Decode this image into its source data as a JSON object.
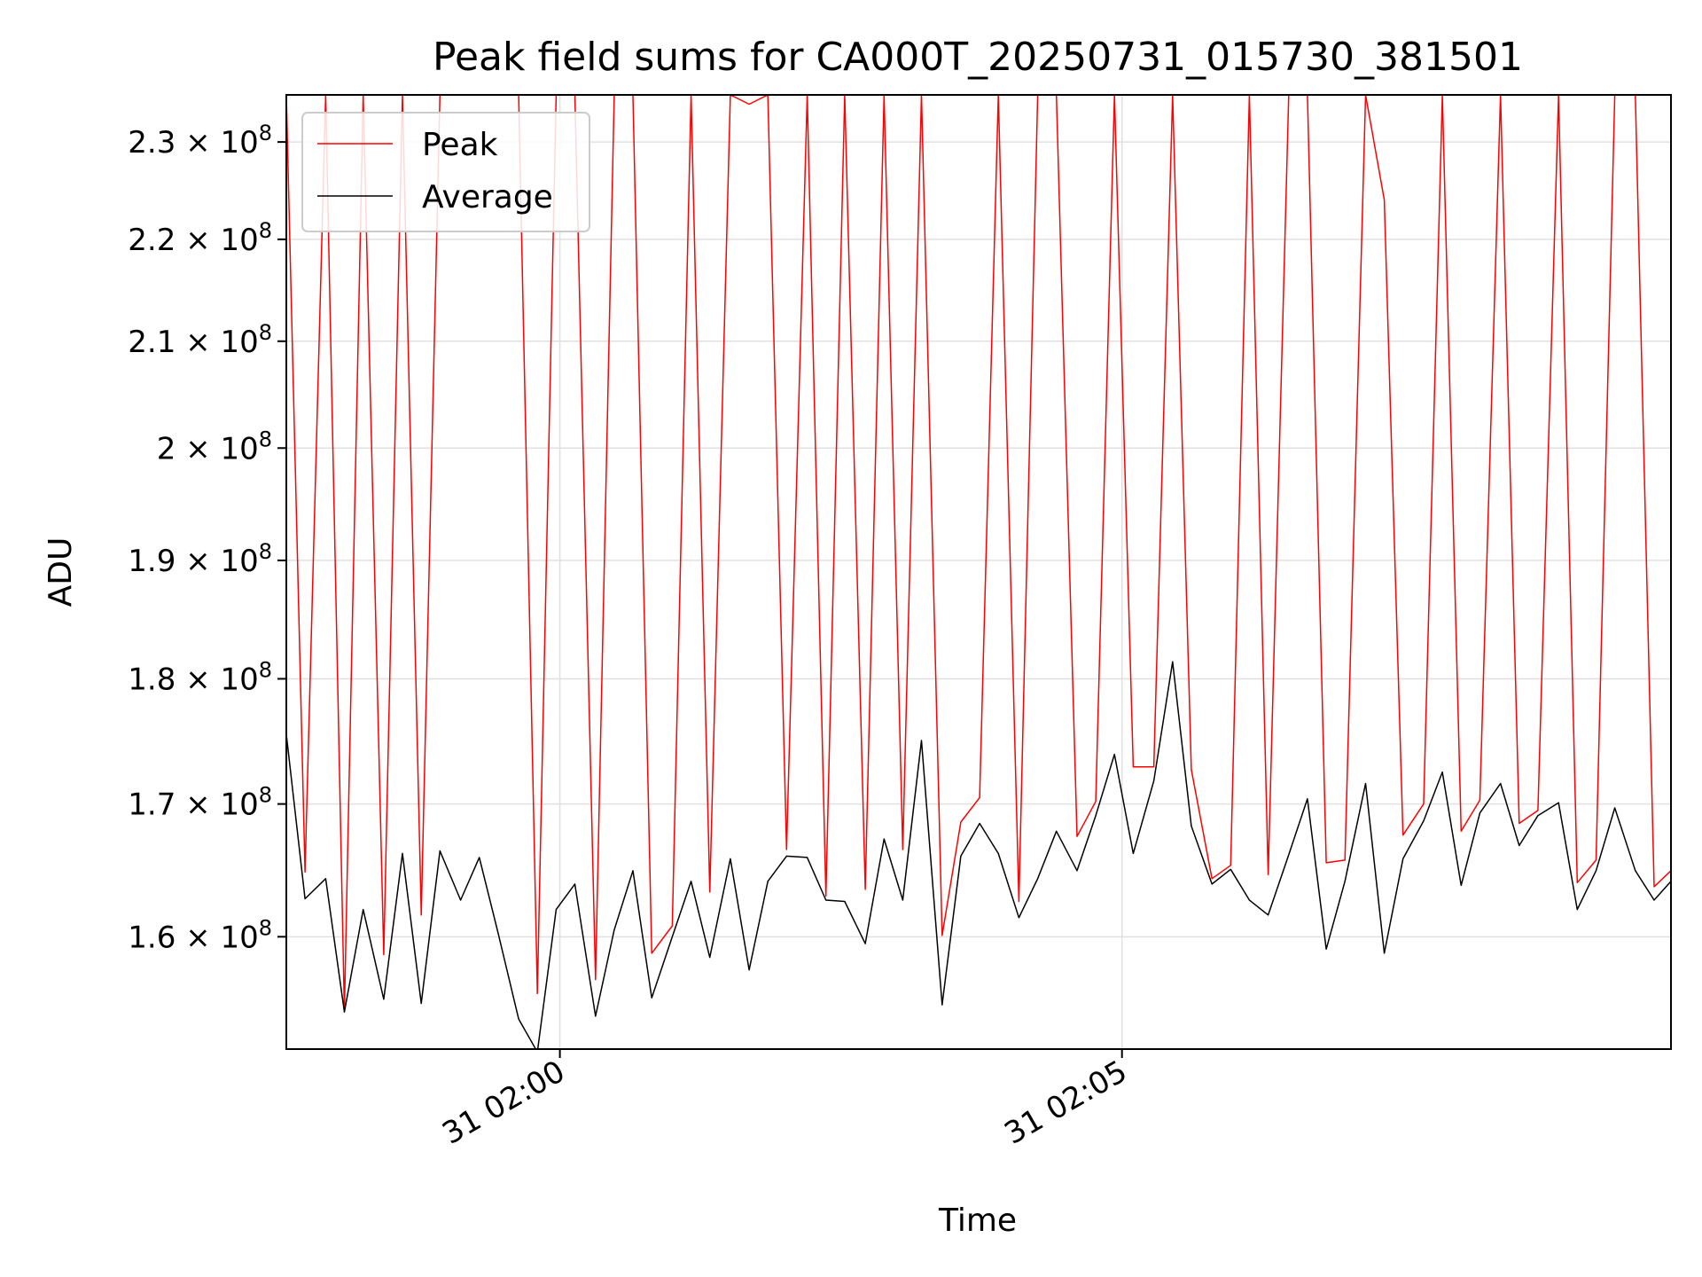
{
  "chart_data": {
    "type": "line",
    "title": "Peak field sums for CA000T_20250731_015730_381501",
    "xlabel": "Time",
    "ylabel": "ADU",
    "y_scale": "log",
    "ylim": [
      152000000,
      235000000
    ],
    "xlim": [
      "2025-07-31T01:57:34",
      "2025-07-31T02:09:53"
    ],
    "y_ticks": [
      {
        "value": 160000000,
        "label_mantissa": "1.6",
        "label_base": "10",
        "label_exp": "8"
      },
      {
        "value": 170000000,
        "label_mantissa": "1.7",
        "label_base": "10",
        "label_exp": "8"
      },
      {
        "value": 180000000,
        "label_mantissa": "1.8",
        "label_base": "10",
        "label_exp": "8"
      },
      {
        "value": 190000000,
        "label_mantissa": "1.9",
        "label_base": "10",
        "label_exp": "8"
      },
      {
        "value": 200000000,
        "label_mantissa": "2",
        "label_base": "10",
        "label_exp": "8"
      },
      {
        "value": 210000000,
        "label_mantissa": "2.1",
        "label_base": "10",
        "label_exp": "8"
      },
      {
        "value": 220000000,
        "label_mantissa": "2.2",
        "label_base": "10",
        "label_exp": "8"
      },
      {
        "value": 230000000,
        "label_mantissa": "2.3",
        "label_base": "10",
        "label_exp": "8"
      }
    ],
    "x_ticks": [
      {
        "value": "2025-07-31T02:00:00",
        "label": "31 02:00"
      },
      {
        "value": "2025-07-31T02:05:00",
        "label": "31 02:05"
      }
    ],
    "grid": true,
    "legend_position": "top-left",
    "x": [
      "2025-07-31T01:57:34",
      "2025-07-31T01:57:44",
      "2025-07-31T01:57:55",
      "2025-07-31T01:58:05",
      "2025-07-31T01:58:15",
      "2025-07-31T01:58:26",
      "2025-07-31T01:58:36",
      "2025-07-31T01:58:46",
      "2025-07-31T01:58:56",
      "2025-07-31T01:59:07",
      "2025-07-31T01:59:17",
      "2025-07-31T01:59:27",
      "2025-07-31T01:59:38",
      "2025-07-31T01:59:48",
      "2025-07-31T01:59:58",
      "2025-07-31T02:00:08",
      "2025-07-31T02:00:19",
      "2025-07-31T02:00:29",
      "2025-07-31T02:00:39",
      "2025-07-31T02:00:49",
      "2025-07-31T02:01:00",
      "2025-07-31T02:01:10",
      "2025-07-31T02:01:20",
      "2025-07-31T02:01:31",
      "2025-07-31T02:01:41",
      "2025-07-31T02:01:51",
      "2025-07-31T02:02:01",
      "2025-07-31T02:02:12",
      "2025-07-31T02:02:22",
      "2025-07-31T02:02:32",
      "2025-07-31T02:02:43",
      "2025-07-31T02:02:53",
      "2025-07-31T02:03:03",
      "2025-07-31T02:03:13",
      "2025-07-31T02:03:24",
      "2025-07-31T02:03:34",
      "2025-07-31T02:03:44",
      "2025-07-31T02:03:54",
      "2025-07-31T02:04:05",
      "2025-07-31T02:04:15",
      "2025-07-31T02:04:25",
      "2025-07-31T02:04:36",
      "2025-07-31T02:04:46",
      "2025-07-31T02:04:56",
      "2025-07-31T02:05:06",
      "2025-07-31T02:05:17",
      "2025-07-31T02:05:27",
      "2025-07-31T02:05:37",
      "2025-07-31T02:05:48",
      "2025-07-31T02:05:58",
      "2025-07-31T02:06:08",
      "2025-07-31T02:06:18",
      "2025-07-31T02:06:29",
      "2025-07-31T02:06:39",
      "2025-07-31T02:06:49",
      "2025-07-31T02:06:59",
      "2025-07-31T02:07:10",
      "2025-07-31T02:07:20",
      "2025-07-31T02:07:30",
      "2025-07-31T02:07:41",
      "2025-07-31T02:07:51",
      "2025-07-31T02:08:01",
      "2025-07-31T02:08:11",
      "2025-07-31T02:08:22",
      "2025-07-31T02:08:32",
      "2025-07-31T02:08:42",
      "2025-07-31T02:08:53",
      "2025-07-31T02:09:03",
      "2025-07-31T02:09:13",
      "2025-07-31T02:09:23",
      "2025-07-31T02:09:34",
      "2025-07-31T02:09:44",
      "2025-07-31T02:09:53"
    ],
    "series": [
      {
        "name": "Peak",
        "color": "#ff0000",
        "values": [
          235000000,
          164800000,
          235000000,
          154600000,
          235000000,
          158700000,
          235000000,
          161600000,
          235000000,
          235000000,
          235000000,
          235000000,
          235000000,
          155900000,
          235000000,
          235000000,
          156900000,
          235000000,
          235000000,
          158800000,
          160800000,
          235000000,
          163300000,
          235000000,
          234000000,
          235000000,
          166500000,
          235000000,
          163000000,
          235000000,
          163500000,
          235000000,
          166500000,
          235000000,
          160100000,
          168600000,
          170500000,
          235000000,
          162600000,
          235000000,
          235000000,
          167500000,
          170200000,
          235000000,
          172900000,
          172900000,
          235000000,
          172700000,
          164300000,
          165300000,
          235000000,
          164600000,
          235000000,
          235000000,
          165500000,
          165700000,
          235000000,
          224000000,
          167600000,
          170000000,
          235000000,
          167900000,
          170300000,
          235000000,
          168500000,
          169500000,
          235000000,
          164000000,
          165700000,
          235000000,
          235000000,
          163700000,
          164900000
        ]
      },
      {
        "name": "Average",
        "color": "#000000",
        "values": [
          175500000,
          162800000,
          164300000,
          154600000,
          162000000,
          155500000,
          166200000,
          155200000,
          166400000,
          162700000,
          165900000,
          160300000,
          154100000,
          151800000,
          162000000,
          163900000,
          154300000,
          160500000,
          164900000,
          155600000,
          160000000,
          164100000,
          158500000,
          165800000,
          157600000,
          164100000,
          166000000,
          165900000,
          162700000,
          162600000,
          159500000,
          167300000,
          162700000,
          175000000,
          155100000,
          166000000,
          168500000,
          166200000,
          161400000,
          164300000,
          167900000,
          164900000,
          169100000,
          173900000,
          166200000,
          171800000,
          181400000,
          168300000,
          163900000,
          165000000,
          162700000,
          161600000,
          166100000,
          170400000,
          159100000,
          164100000,
          171600000,
          158800000,
          165800000,
          168700000,
          172500000,
          163800000,
          169300000,
          171600000,
          166800000,
          169100000,
          170100000,
          162000000,
          164900000,
          169700000,
          164900000,
          162700000,
          164100000
        ]
      }
    ]
  }
}
